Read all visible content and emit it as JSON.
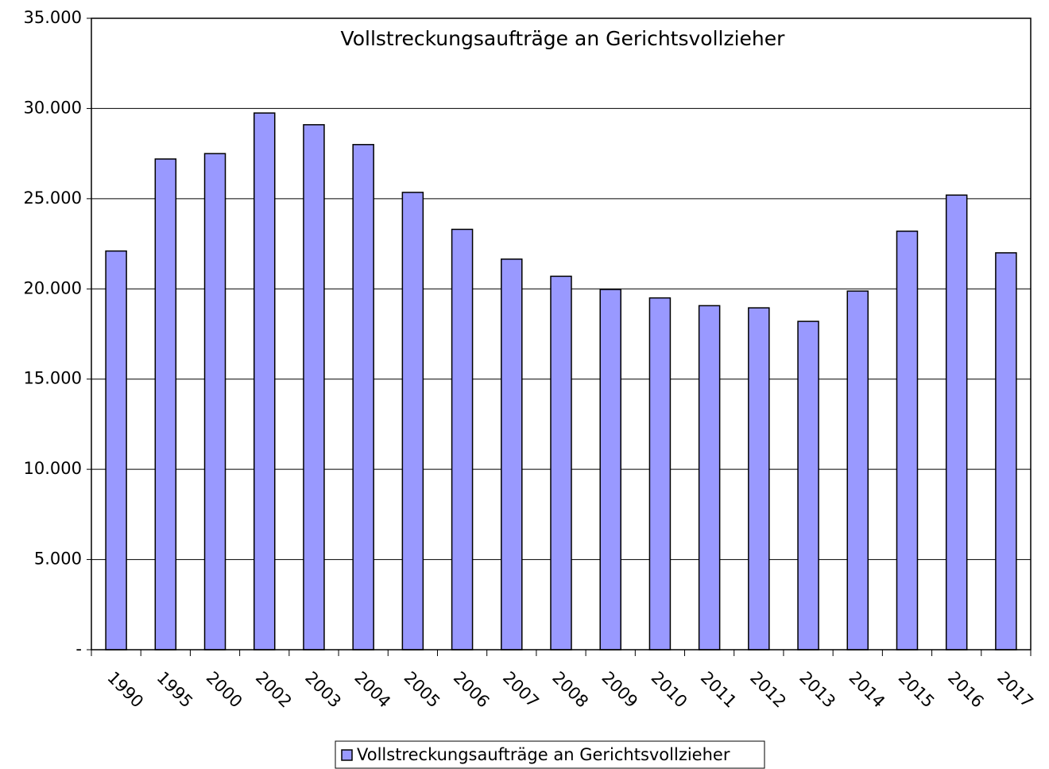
{
  "chart_data": {
    "type": "bar",
    "title": "Vollstreckungsaufträge an Gerichtsvollzieher",
    "categories": [
      "1990",
      "1995",
      "2000",
      "2002",
      "2003",
      "2004",
      "2005",
      "2006",
      "2007",
      "2008",
      "2009",
      "2010",
      "2011",
      "2012",
      "2013",
      "2014",
      "2015",
      "2016",
      "2017"
    ],
    "series": [
      {
        "name": "Vollstreckungsaufträge an Gerichtsvollzieher",
        "color": "#9999ff",
        "values": [
          22100,
          27200,
          27500,
          29750,
          29100,
          28000,
          25350,
          23300,
          21650,
          20700,
          19970,
          19500,
          19070,
          18950,
          18200,
          19880,
          23200,
          25200,
          22000
        ]
      }
    ],
    "ylim": [
      0,
      35000
    ],
    "yticks": [
      {
        "value": 0,
        "label": "-"
      },
      {
        "value": 5000,
        "label": "5.000"
      },
      {
        "value": 10000,
        "label": "10.000"
      },
      {
        "value": 15000,
        "label": "15.000"
      },
      {
        "value": 20000,
        "label": "20.000"
      },
      {
        "value": 25000,
        "label": "25.000"
      },
      {
        "value": 30000,
        "label": "30.000"
      },
      {
        "value": 35000,
        "label": "35.000"
      }
    ],
    "grid": true,
    "legend": "bottom"
  }
}
